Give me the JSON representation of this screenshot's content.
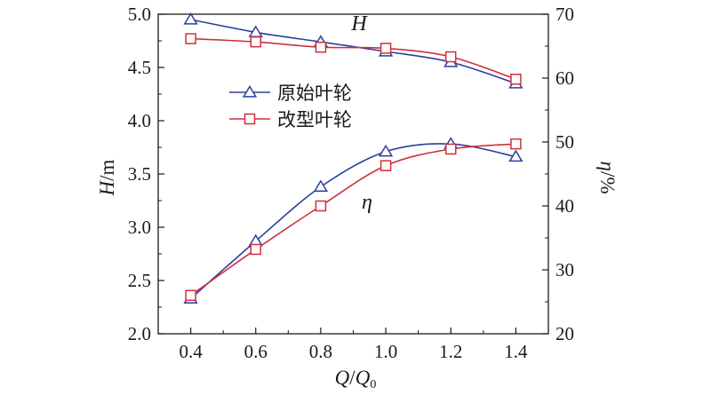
{
  "chart_data": {
    "type": "line",
    "x": [
      0.4,
      0.6,
      0.8,
      1.0,
      1.2,
      1.4
    ],
    "xlim": [
      0.3,
      1.5
    ],
    "xticks": [
      "0.4",
      "0.6",
      "0.8",
      "1.0",
      "1.2",
      "1.4"
    ],
    "xlabel": {
      "main": "Q",
      "slash": "/",
      "sub_main": "Q",
      "sub": "0"
    },
    "y_left": {
      "label": {
        "main": "H",
        "unit": "/m"
      },
      "lim": [
        2.0,
        5.0
      ],
      "ticks": [
        "2.0",
        "2.5",
        "3.0",
        "3.5",
        "4.0",
        "4.5",
        "5.0"
      ]
    },
    "y_right": {
      "label": {
        "main": "η",
        "unit": "/%"
      },
      "lim": [
        20,
        70
      ],
      "ticks": [
        "20",
        "30",
        "40",
        "50",
        "60",
        "70"
      ]
    },
    "series": [
      {
        "name": "原始叶轮",
        "axis": "left",
        "quantity": "H",
        "marker": "triangle",
        "color": "#2b3f9e",
        "values": [
          4.95,
          4.83,
          4.74,
          4.65,
          4.55,
          4.35
        ]
      },
      {
        "name": "改型叶轮",
        "axis": "left",
        "quantity": "H",
        "marker": "square",
        "color": "#d0303a",
        "values": [
          4.77,
          4.74,
          4.69,
          4.68,
          4.6,
          4.39
        ]
      },
      {
        "name": "原始叶轮",
        "axis": "right",
        "quantity": "η",
        "marker": "triangle",
        "color": "#2b3f9e",
        "values": [
          25.5,
          34.5,
          43.0,
          48.5,
          49.7,
          47.7
        ]
      },
      {
        "name": "改型叶轮",
        "axis": "right",
        "quantity": "η",
        "marker": "square",
        "color": "#d0303a",
        "values": [
          26.0,
          33.2,
          40.0,
          46.3,
          48.9,
          49.7
        ]
      }
    ],
    "legend": {
      "placement": "upper-left-inside",
      "items": [
        {
          "label": "原始叶轮",
          "marker": "triangle",
          "color": "#2b3f9e"
        },
        {
          "label": "改型叶轮",
          "marker": "square",
          "color": "#d0303a"
        }
      ]
    },
    "annotations": [
      {
        "text": "H",
        "near": "head-curves"
      },
      {
        "text": "η",
        "near": "efficiency-curves"
      }
    ],
    "grid": false
  }
}
